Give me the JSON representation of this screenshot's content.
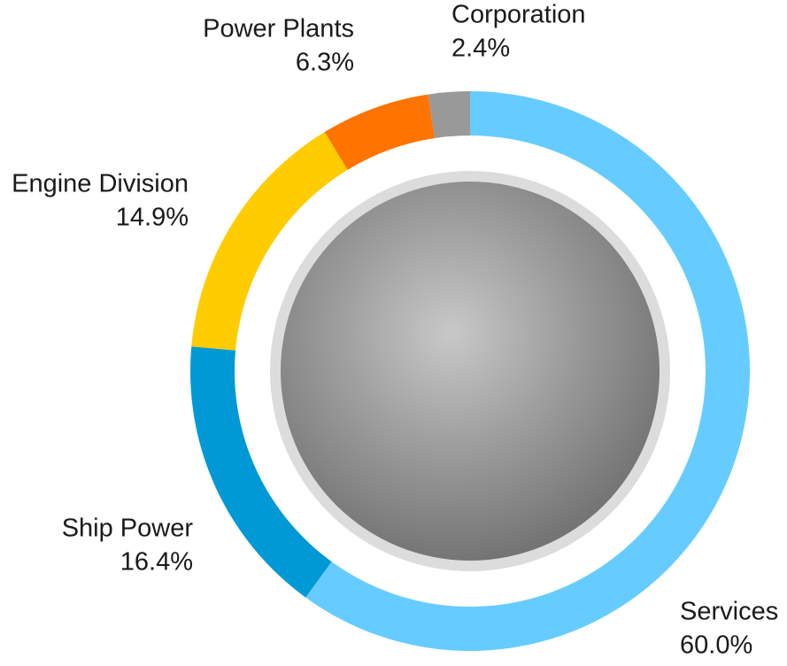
{
  "chart_data": {
    "type": "donut",
    "categories": [
      "Services",
      "Ship Power",
      "Engine Division",
      "Power Plants",
      "Corporation"
    ],
    "values": [
      60.0,
      16.4,
      14.9,
      6.3,
      2.4
    ],
    "value_labels": [
      "60.0%",
      "16.4%",
      "14.9%",
      "6.3%",
      "2.4%"
    ],
    "colors": [
      "#66ccff",
      "#0099d6",
      "#ffcc00",
      "#ff7300",
      "#999999"
    ]
  }
}
